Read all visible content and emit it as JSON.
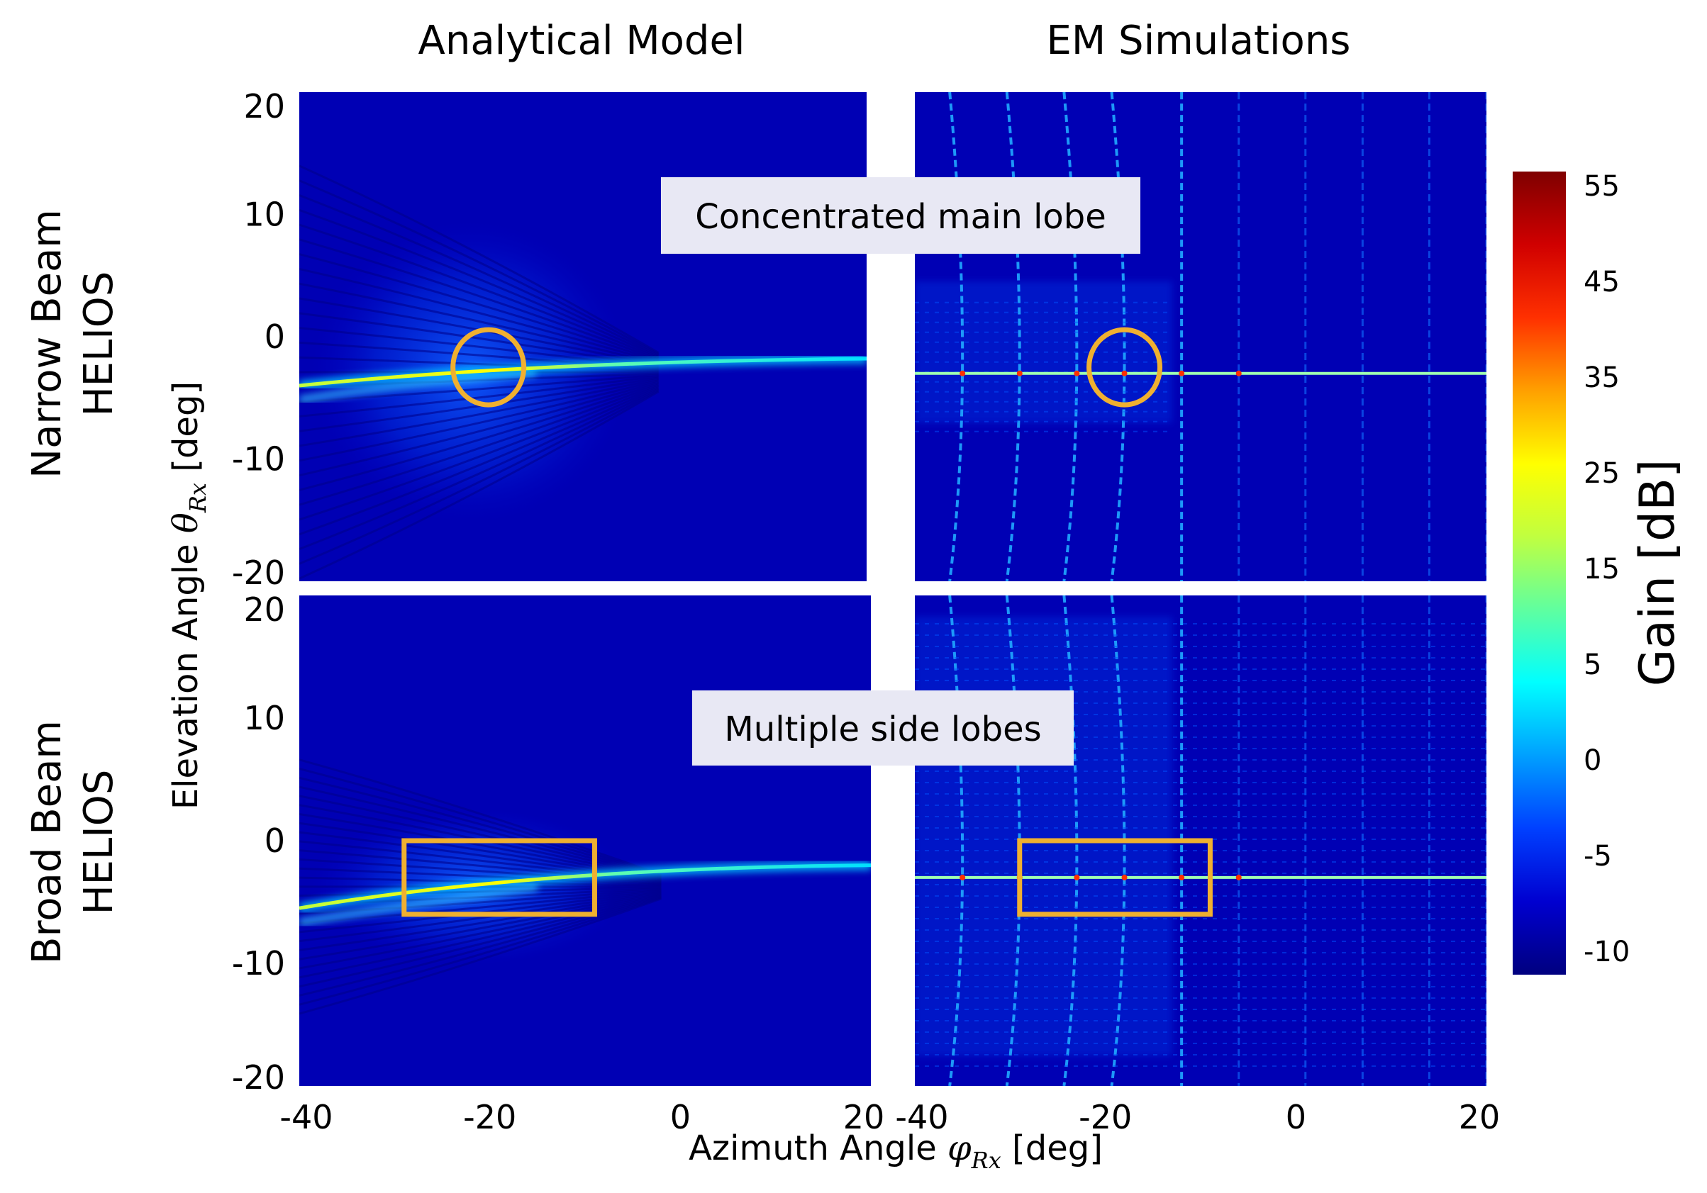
{
  "figure": {
    "col_titles": [
      "Analytical Model",
      "EM Simulations"
    ],
    "row_titles": [
      {
        "line1": "Narrow Beam",
        "line2": "HELIOS"
      },
      {
        "line1": "Broad Beam",
        "line2": "HELIOS"
      }
    ],
    "xlabel_prefix": "Azimuth Angle ",
    "xlabel_symbol": "φ",
    "xlabel_sub": "Rx",
    "xlabel_suffix": " [deg]",
    "ylabel_prefix": "Elevation Angle ",
    "ylabel_symbol": "θ",
    "ylabel_sub": "Rx",
    "ylabel_suffix": " [deg]",
    "annotations": [
      "Concentrated main lobe",
      "Multiple side lobes"
    ],
    "colorbar": {
      "label": "Gain [dB]",
      "ticks": [
        "55",
        "45",
        "35",
        "25",
        "15",
        "5",
        "0",
        "-5",
        "-10"
      ],
      "tick_values": [
        55,
        45,
        35,
        25,
        15,
        5,
        0,
        -5,
        -10
      ],
      "visual_positions": [
        0,
        1,
        2,
        3,
        4,
        5,
        6,
        7,
        8
      ],
      "colors": [
        "#00007f",
        "#0000d0",
        "#0040ff",
        "#00a0ff",
        "#00ffff",
        "#60ff9f",
        "#c0ff40",
        "#ffff00",
        "#ffa000",
        "#ff3000",
        "#d00000",
        "#7f0000"
      ]
    },
    "highlight_color": "#f0b030"
  },
  "chart_data": [
    {
      "type": "heatmap",
      "title": "Analytical Model",
      "row": "Narrow Beam HELIOS",
      "xlim": [
        -40,
        20
      ],
      "ylim": [
        -20,
        20
      ],
      "xticks": [
        "-40",
        "-20",
        "0",
        "20"
      ],
      "xtick_values": [
        -40,
        -20,
        0,
        20
      ],
      "yticks": [
        "20",
        "10",
        "0",
        "-10",
        "-20"
      ],
      "ytick_values": [
        20,
        10,
        0,
        -10,
        -20
      ],
      "beam": {
        "x_start": -40,
        "y_start": -4,
        "x_end": 20,
        "y_end": -1.8,
        "peak_gain_db": 25
      },
      "highlight": {
        "shape": "circle",
        "x": -20,
        "y": -2.5,
        "label": "Concentrated main lobe"
      }
    },
    {
      "type": "heatmap",
      "title": "EM Simulations",
      "row": "Narrow Beam HELIOS",
      "xlim": [
        -40,
        20
      ],
      "ylim": [
        -20,
        20
      ],
      "beam": {
        "y": -3,
        "peak_gain_db": 45
      },
      "vertical_lobes_x": [
        -35,
        -29,
        -23,
        -18,
        -12,
        -6,
        1,
        7,
        14,
        20
      ],
      "highlight": {
        "shape": "circle",
        "x": -18,
        "y": -2.5,
        "label": "Concentrated main lobe"
      }
    },
    {
      "type": "heatmap",
      "title": "Analytical Model",
      "row": "Broad Beam HELIOS",
      "xlim": [
        -40,
        20
      ],
      "ylim": [
        -20,
        20
      ],
      "xticks": [
        "-40",
        "-20",
        "0",
        "20"
      ],
      "xtick_values": [
        -40,
        -20,
        0,
        20
      ],
      "yticks": [
        "20",
        "10",
        "0",
        "-10",
        "-20"
      ],
      "ytick_values": [
        20,
        10,
        0,
        -10,
        -20
      ],
      "beam": {
        "x_start": -40,
        "y_start": -5.5,
        "x_end": 20,
        "y_end": -2,
        "peak_gain_db": 30
      },
      "highlight": {
        "shape": "rectangle",
        "x_range": [
          -29,
          -9
        ],
        "y_range": [
          -6,
          0
        ],
        "label": "Multiple side lobes"
      }
    },
    {
      "type": "heatmap",
      "title": "EM Simulations",
      "row": "Broad Beam HELIOS",
      "xlim": [
        -40,
        20
      ],
      "ylim": [
        -20,
        20
      ],
      "xticks": [
        "-40",
        "-20",
        "0",
        "20"
      ],
      "xtick_values": [
        -40,
        -20,
        0,
        20
      ],
      "beam": {
        "y": -3,
        "peak_gain_db": 40
      },
      "vertical_lobes_x": [
        -35,
        -29,
        -23,
        -18,
        -12,
        -6,
        1,
        7,
        14,
        20
      ],
      "highlight": {
        "shape": "rectangle",
        "x_range": [
          -29,
          -9
        ],
        "y_range": [
          -6,
          0
        ],
        "label": "Multiple side lobes"
      }
    }
  ]
}
